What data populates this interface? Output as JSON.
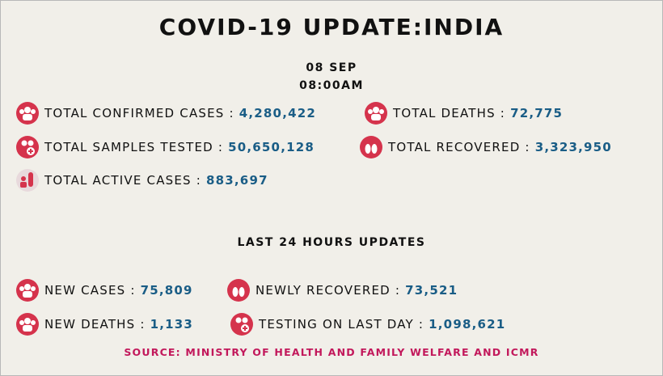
{
  "header": {
    "title": "COVID-19 UPDATE:INDIA",
    "date": "08 SEP",
    "time": "08:00AM"
  },
  "totals": [
    {
      "label": "TOTAL CONFIRMED CASES :",
      "value": "4,280,422"
    },
    {
      "label": "TOTAL DEATHS :",
      "value": "72,775"
    },
    {
      "label": "TOTAL SAMPLES TESTED :",
      "value": "50,650,128"
    },
    {
      "label": "TOTAL RECOVERED :",
      "value": "3,323,950"
    },
    {
      "label": "TOTAL ACTIVE CASES :",
      "value": "883,697"
    }
  ],
  "recent": {
    "heading": "LAST 24 HOURS UPDATES",
    "items": [
      {
        "label": "NEW CASES :",
        "value": "75,809"
      },
      {
        "label": "NEWLY RECOVERED :",
        "value": "73,521"
      },
      {
        "label": "NEW DEATHS :",
        "value": "1,133"
      },
      {
        "label": "TESTING ON LAST DAY :",
        "value": "1,098,621"
      }
    ]
  },
  "source": "SOURCE: MINISTRY OF HEALTH AND FAMILY WELFARE AND ICMR"
}
